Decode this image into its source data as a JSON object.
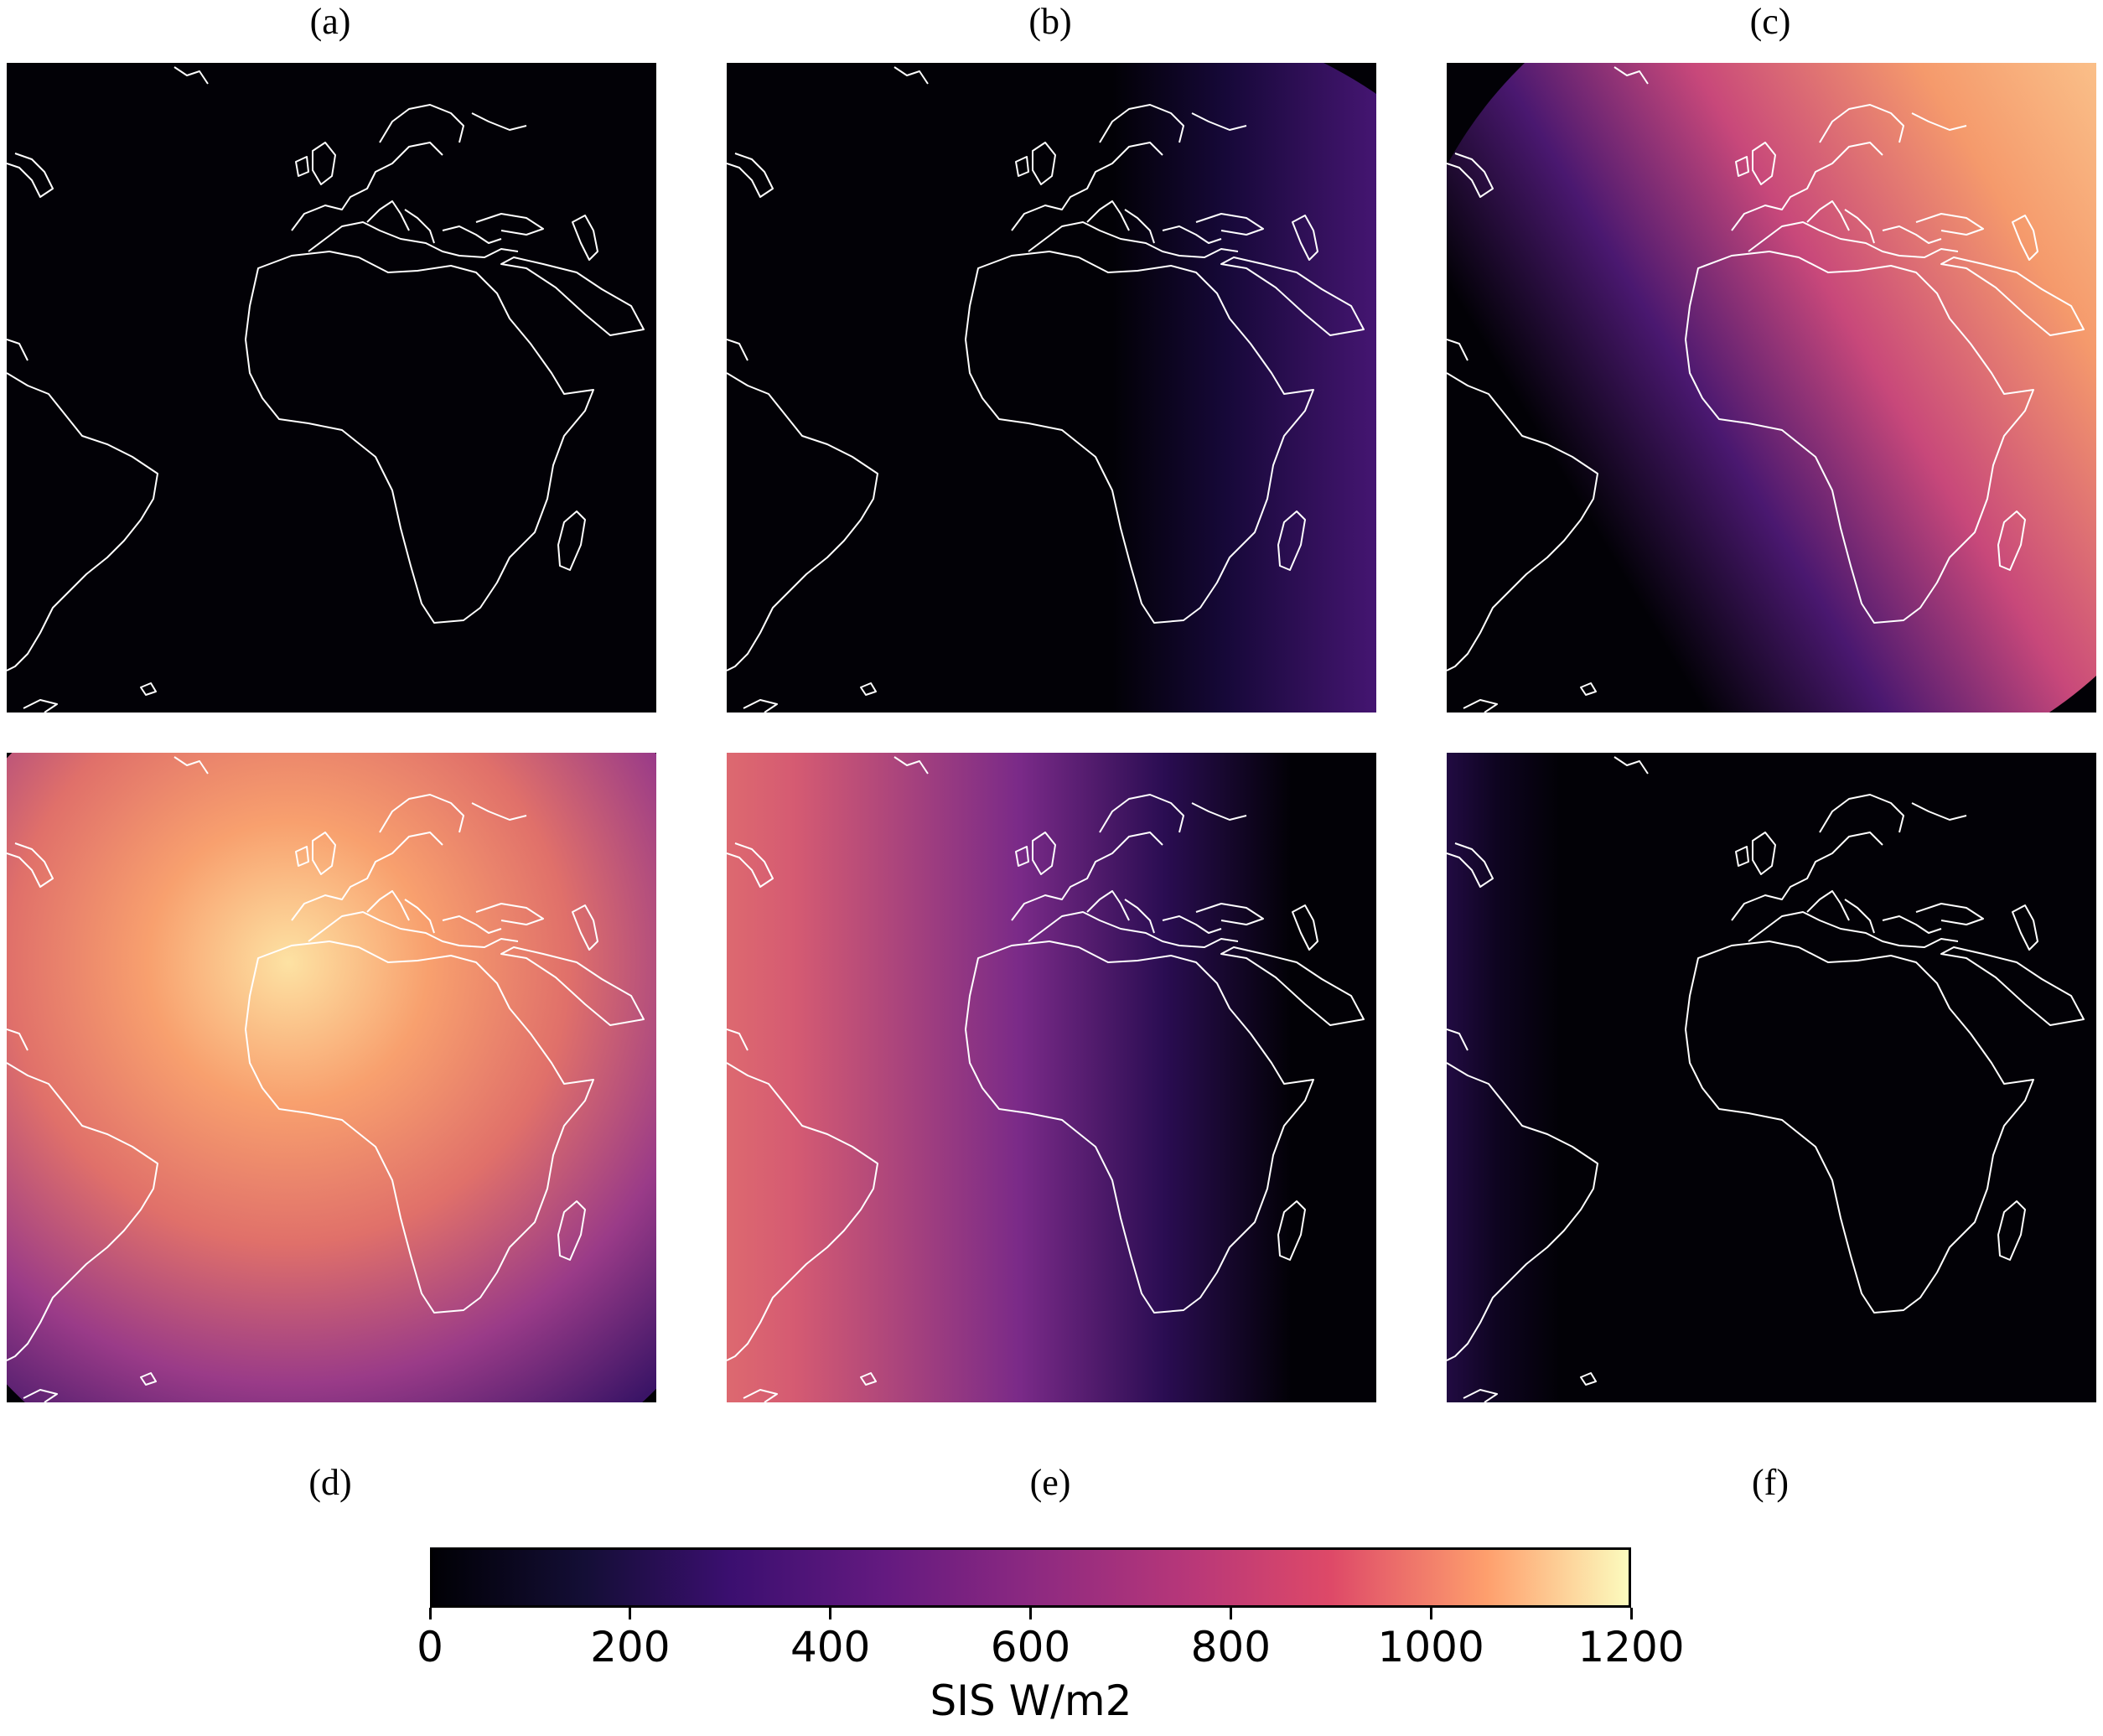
{
  "panels": [
    {
      "label": "(a)"
    },
    {
      "label": "(b)"
    },
    {
      "label": "(c)"
    },
    {
      "label": "(d)"
    },
    {
      "label": "(e)"
    },
    {
      "label": "(f)"
    }
  ],
  "colorbar": {
    "title": "SIS W/m2",
    "colormap": "magma",
    "range": [
      0,
      1200
    ],
    "ticks": [
      "0",
      "200",
      "400",
      "600",
      "800",
      "1000",
      "1200"
    ],
    "colors": [
      "#000004",
      "#3b0f70",
      "#8c2981",
      "#de4968",
      "#fe9f6d",
      "#fcfdbf"
    ]
  },
  "coastline_color": "#ffffff"
}
